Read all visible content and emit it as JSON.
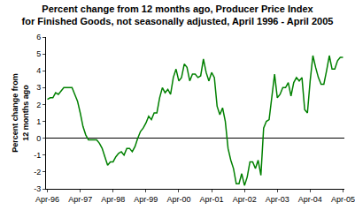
{
  "chart_data": {
    "type": "line",
    "title": [
      "Percent change from 12 months ago, Producer Price Index",
      "for Finished Goods, not seasonally adjusted, April 1996 - April 2005"
    ],
    "y_label": [
      "Percent change from",
      "12 months ago"
    ],
    "categories": [
      "Apr-96",
      null,
      null,
      null,
      null,
      null,
      null,
      null,
      null,
      null,
      null,
      null,
      "Apr-97",
      null,
      null,
      null,
      null,
      null,
      null,
      null,
      null,
      null,
      null,
      null,
      "Apr-98",
      null,
      null,
      null,
      null,
      null,
      null,
      null,
      null,
      null,
      null,
      null,
      "Apr-99",
      null,
      null,
      null,
      null,
      null,
      null,
      null,
      null,
      null,
      null,
      null,
      "Apr-00",
      null,
      null,
      null,
      null,
      null,
      null,
      null,
      null,
      null,
      null,
      null,
      "Apr-01",
      null,
      null,
      null,
      null,
      null,
      null,
      null,
      null,
      null,
      null,
      null,
      "Apr-02",
      null,
      null,
      null,
      null,
      null,
      null,
      null,
      null,
      null,
      null,
      null,
      "Apr-03",
      null,
      null,
      null,
      null,
      null,
      null,
      null,
      null,
      null,
      null,
      null,
      "Apr-04",
      null,
      null,
      null,
      null,
      null,
      null,
      null,
      null,
      null,
      null,
      null,
      "Apr-05"
    ],
    "values": [
      2.3,
      2.4,
      2.4,
      2.7,
      2.6,
      2.8,
      3.0,
      3.0,
      3.0,
      3.0,
      2.6,
      2.2,
      1.5,
      0.7,
      0.2,
      -0.1,
      -0.1,
      -0.1,
      -0.1,
      -0.3,
      -0.6,
      -1.1,
      -1.6,
      -1.4,
      -1.4,
      -1.1,
      -0.9,
      -0.8,
      -1.0,
      -0.6,
      -0.6,
      -0.8,
      -0.5,
      0.0,
      0.4,
      0.6,
      0.9,
      1.3,
      1.1,
      1.5,
      1.5,
      2.4,
      3.0,
      2.7,
      2.9,
      2.6,
      3.6,
      4.1,
      3.4,
      3.6,
      4.4,
      4.2,
      3.4,
      3.8,
      3.8,
      3.6,
      3.7,
      4.7,
      3.9,
      3.4,
      3.9,
      3.6,
      1.9,
      1.4,
      1.8,
      1.0,
      -0.6,
      -1.3,
      -1.8,
      -2.7,
      -2.7,
      -2.1,
      -2.8,
      -2.3,
      -1.4,
      -1.4,
      -1.8,
      -1.3,
      -2.2,
      0.6,
      1.0,
      1.1,
      2.4,
      3.8,
      2.4,
      2.6,
      3.0,
      3.0,
      3.3,
      2.5,
      3.3,
      3.6,
      3.4,
      3.6,
      1.7,
      1.5,
      3.4,
      4.9,
      4.2,
      3.6,
      3.2,
      3.2,
      4.0,
      4.9,
      4.1,
      4.1,
      4.6,
      4.8,
      4.8
    ],
    "color": "#008000",
    "ylim": [
      -3,
      6
    ],
    "yticks": [
      -3,
      -2,
      -1,
      0,
      1,
      2,
      3,
      4,
      5,
      6
    ],
    "grid": false
  }
}
